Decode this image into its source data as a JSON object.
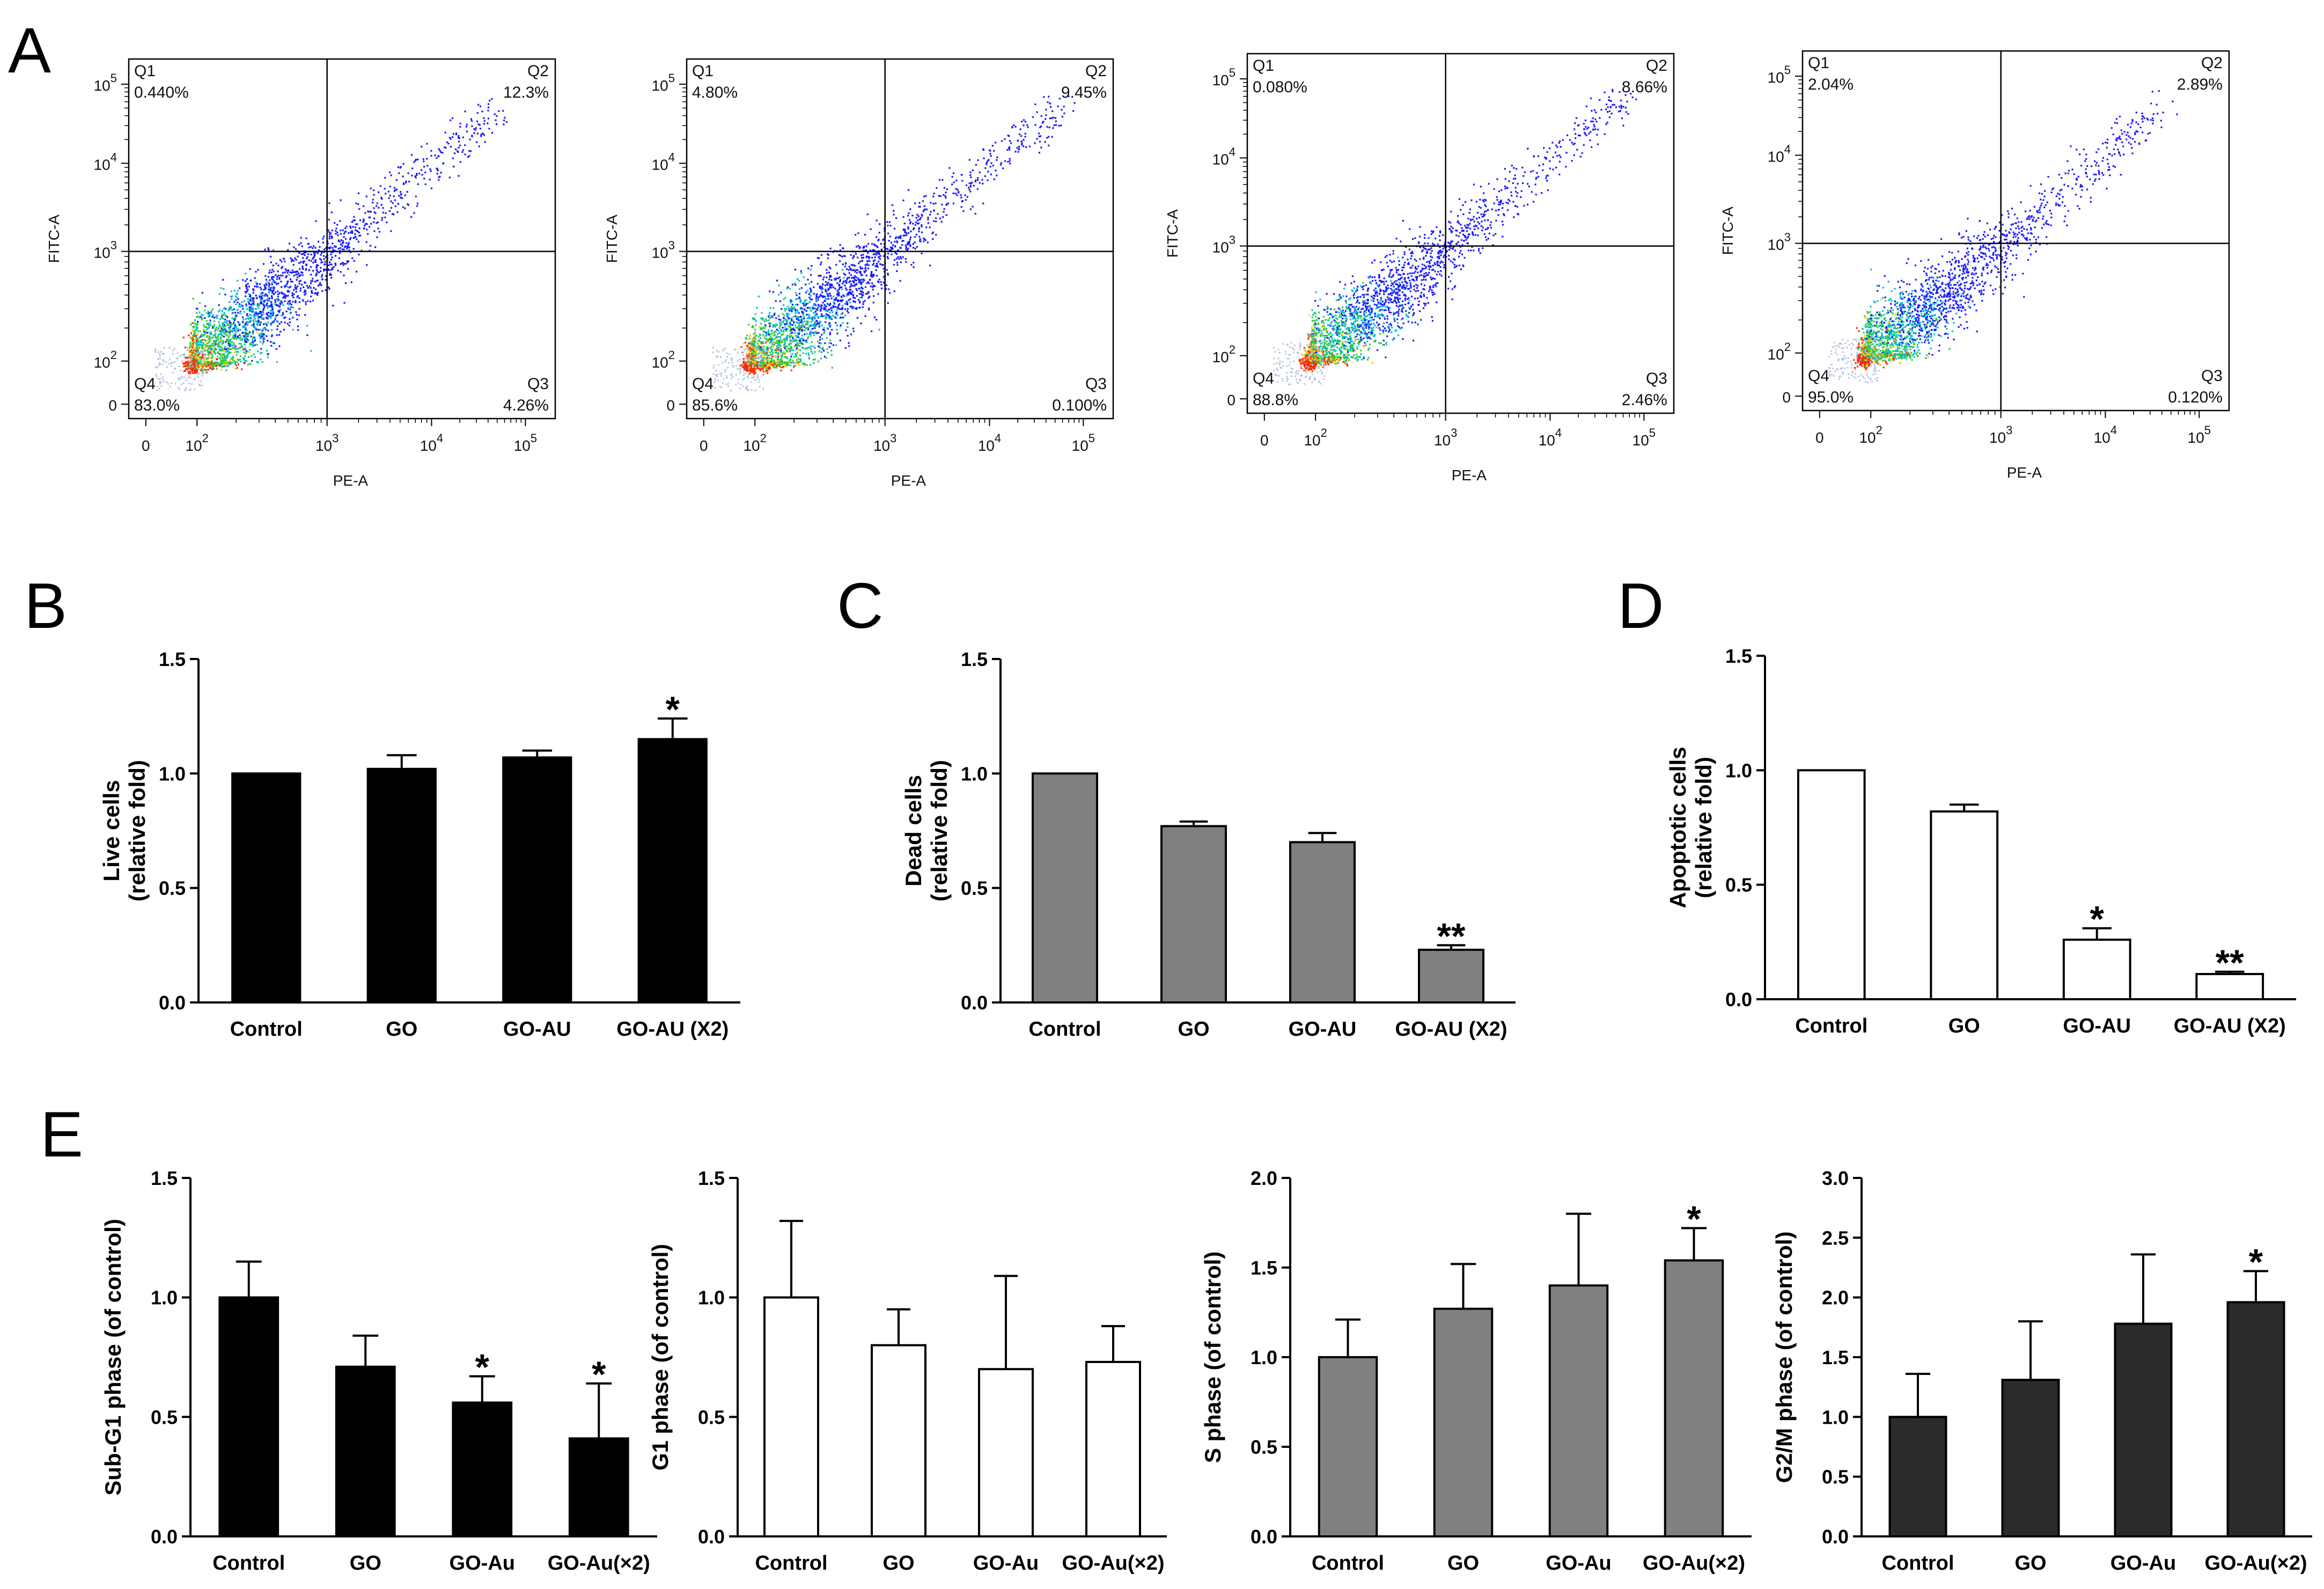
{
  "panel_letters": {
    "a": "A",
    "b": "B",
    "c": "C",
    "d": "D",
    "e": "E"
  },
  "colors": {
    "black_bar": "#000000",
    "gray_bar": "#808080",
    "white_bar": "#ffffff",
    "dark_bar": "#2b2b2b",
    "axis": "#000000",
    "flow_gate": "#000000",
    "density_low": "#1a1aff",
    "density_mid": "#2ecc40",
    "density_high": "#ff2a00"
  },
  "chart_data": [
    {
      "id": "A1",
      "type": "scatter",
      "subtype": "flow-cytometry-density",
      "xlabel": "PE-A",
      "ylabel": "FITC-A",
      "x_ticks": [
        "0",
        "10^2",
        "10^3",
        "10^4",
        "10^5"
      ],
      "y_ticks": [
        "0",
        "10^2",
        "10^3",
        "10^4",
        "10^5"
      ],
      "quadrants": {
        "Q1": {
          "name": "Q1",
          "value": "0.440%"
        },
        "Q2": {
          "name": "Q2",
          "value": "12.3%"
        },
        "Q3": {
          "name": "Q3",
          "value": "4.26%"
        },
        "Q4": {
          "name": "Q4",
          "value": "83.0%"
        }
      },
      "gate": {
        "x": 1000,
        "y": 1000
      },
      "population": {
        "x_start": 60,
        "y_start": 60,
        "x_end": 50000,
        "y_end": 50000
      }
    },
    {
      "id": "A2",
      "type": "scatter",
      "subtype": "flow-cytometry-density",
      "xlabel": "PE-A",
      "ylabel": "FITC-A",
      "x_ticks": [
        "0",
        "10^2",
        "10^3",
        "10^4",
        "10^5"
      ],
      "y_ticks": [
        "0",
        "10^2",
        "10^3",
        "10^4",
        "10^5"
      ],
      "quadrants": {
        "Q1": {
          "name": "Q1",
          "value": "4.80%"
        },
        "Q2": {
          "name": "Q2",
          "value": "9.45%"
        },
        "Q3": {
          "name": "Q3",
          "value": "0.100%"
        },
        "Q4": {
          "name": "Q4",
          "value": "85.6%"
        }
      },
      "gate": {
        "x": 1000,
        "y": 1000
      },
      "population": {
        "x_start": 60,
        "y_start": 60,
        "x_end": 60000,
        "y_end": 60000
      }
    },
    {
      "id": "A3",
      "type": "scatter",
      "subtype": "flow-cytometry-density",
      "xlabel": "PE-A",
      "ylabel": "FITC-A",
      "x_ticks": [
        "0",
        "10^2",
        "10^3",
        "10^4",
        "10^5"
      ],
      "y_ticks": [
        "0",
        "10^2",
        "10^3",
        "10^4",
        "10^5"
      ],
      "quadrants": {
        "Q1": {
          "name": "Q1",
          "value": "0.080%"
        },
        "Q2": {
          "name": "Q2",
          "value": "8.66%"
        },
        "Q3": {
          "name": "Q3",
          "value": "2.46%"
        },
        "Q4": {
          "name": "Q4",
          "value": "88.8%"
        }
      },
      "gate": {
        "x": 1000,
        "y": 1000
      },
      "population": {
        "x_start": 50,
        "y_start": 50,
        "x_end": 60000,
        "y_end": 60000
      }
    },
    {
      "id": "A4",
      "type": "scatter",
      "subtype": "flow-cytometry-density",
      "xlabel": "PE-A",
      "ylabel": "FITC-A",
      "x_ticks": [
        "0",
        "10^2",
        "10^3",
        "10^4",
        "10^5"
      ],
      "y_ticks": [
        "0",
        "10^2",
        "10^3",
        "10^4",
        "10^5"
      ],
      "quadrants": {
        "Q1": {
          "name": "Q1",
          "value": "2.04%"
        },
        "Q2": {
          "name": "Q2",
          "value": "2.89%"
        },
        "Q3": {
          "name": "Q3",
          "value": "0.120%"
        },
        "Q4": {
          "name": "Q4",
          "value": "95.0%"
        }
      },
      "gate": {
        "x": 1000,
        "y": 1000
      },
      "population": {
        "x_start": 50,
        "y_start": 50,
        "x_end": 40000,
        "y_end": 40000
      }
    },
    {
      "id": "B",
      "type": "bar",
      "title": "",
      "ylabel": "Live cells (relative fold)",
      "ylabel_lines": [
        "Live cells",
        "(relative fold)"
      ],
      "categories": [
        "Control",
        "GO",
        "GO-AU",
        "GO-AU (X2)"
      ],
      "values": [
        1.0,
        1.02,
        1.07,
        1.15
      ],
      "errors": [
        0.0,
        0.06,
        0.03,
        0.09
      ],
      "significance": [
        "",
        "",
        "",
        "*"
      ],
      "ylim": [
        0,
        1.5
      ],
      "yticks": [
        "0.0",
        "0.5",
        "1.0",
        "1.5"
      ],
      "fill": "#000000"
    },
    {
      "id": "C",
      "type": "bar",
      "title": "",
      "ylabel": "Dead cells (relative fold)",
      "ylabel_lines": [
        "Dead cells",
        "(relative fold)"
      ],
      "categories": [
        "Control",
        "GO",
        "GO-AU",
        "GO-AU (X2)"
      ],
      "values": [
        1.0,
        0.77,
        0.7,
        0.23
      ],
      "errors": [
        0.0,
        0.02,
        0.04,
        0.02
      ],
      "significance": [
        "",
        "",
        "",
        "**"
      ],
      "ylim": [
        0,
        1.5
      ],
      "yticks": [
        "0.0",
        "0.5",
        "1.0",
        "1.5"
      ],
      "fill": "#808080"
    },
    {
      "id": "D",
      "type": "bar",
      "title": "",
      "ylabel": "Apoptotic cells (relative fold)",
      "ylabel_lines": [
        "Apoptotic cells",
        "(relative fold)"
      ],
      "categories": [
        "Control",
        "GO",
        "GO-AU",
        "GO-AU (X2)"
      ],
      "values": [
        1.0,
        0.82,
        0.26,
        0.11
      ],
      "errors": [
        0.0,
        0.03,
        0.05,
        0.01
      ],
      "significance": [
        "",
        "",
        "*",
        "**"
      ],
      "ylim": [
        0,
        1.5
      ],
      "yticks": [
        "0.0",
        "0.5",
        "1.0",
        "1.5"
      ],
      "fill": "#ffffff"
    },
    {
      "id": "E1",
      "type": "bar",
      "title": "",
      "ylabel": "Sub-G1 phase (of control)",
      "ylabel_lines": [
        "Sub-G1 phase (of control)"
      ],
      "categories": [
        "Control",
        "GO",
        "GO-Au",
        "GO-Au(×2)"
      ],
      "values": [
        1.0,
        0.71,
        0.56,
        0.41
      ],
      "errors": [
        0.15,
        0.13,
        0.11,
        0.23
      ],
      "significance": [
        "",
        "",
        "*",
        "*"
      ],
      "ylim": [
        0,
        1.5
      ],
      "yticks": [
        "0.0",
        "0.5",
        "1.0",
        "1.5"
      ],
      "fill": "#000000"
    },
    {
      "id": "E2",
      "type": "bar",
      "title": "",
      "ylabel": "G1 phase (of control)",
      "ylabel_lines": [
        "G1 phase (of control)"
      ],
      "categories": [
        "Control",
        "GO",
        "GO-Au",
        "GO-Au(×2)"
      ],
      "values": [
        1.0,
        0.8,
        0.7,
        0.73
      ],
      "errors": [
        0.32,
        0.15,
        0.39,
        0.15
      ],
      "significance": [
        "",
        "",
        "",
        ""
      ],
      "ylim": [
        0,
        1.5
      ],
      "yticks": [
        "0.0",
        "0.5",
        "1.0",
        "1.5"
      ],
      "fill": "#ffffff"
    },
    {
      "id": "E3",
      "type": "bar",
      "title": "",
      "ylabel": "S phase (of control)",
      "ylabel_lines": [
        "S phase (of control)"
      ],
      "categories": [
        "Control",
        "GO",
        "GO-Au",
        "GO-Au(×2)"
      ],
      "values": [
        1.0,
        1.27,
        1.4,
        1.54
      ],
      "errors": [
        0.21,
        0.25,
        0.4,
        0.18
      ],
      "significance": [
        "",
        "",
        "",
        "*"
      ],
      "ylim": [
        0,
        2.0
      ],
      "yticks": [
        "0.0",
        "0.5",
        "1.0",
        "1.5",
        "2.0"
      ],
      "fill": "#808080"
    },
    {
      "id": "E4",
      "type": "bar",
      "title": "",
      "ylabel": "G2/M phase (of control)",
      "ylabel_lines": [
        "G2/M phase (of control)"
      ],
      "categories": [
        "Control",
        "GO",
        "GO-Au",
        "GO-Au(×2)"
      ],
      "values": [
        1.0,
        1.31,
        1.78,
        1.96
      ],
      "errors": [
        0.36,
        0.49,
        0.58,
        0.26
      ],
      "significance": [
        "",
        "",
        "",
        "*"
      ],
      "ylim": [
        0,
        3.0
      ],
      "yticks": [
        "0.0",
        "0.5",
        "1.0",
        "1.5",
        "2.0",
        "2.5",
        "3.0"
      ],
      "fill": "#2b2b2b"
    }
  ]
}
